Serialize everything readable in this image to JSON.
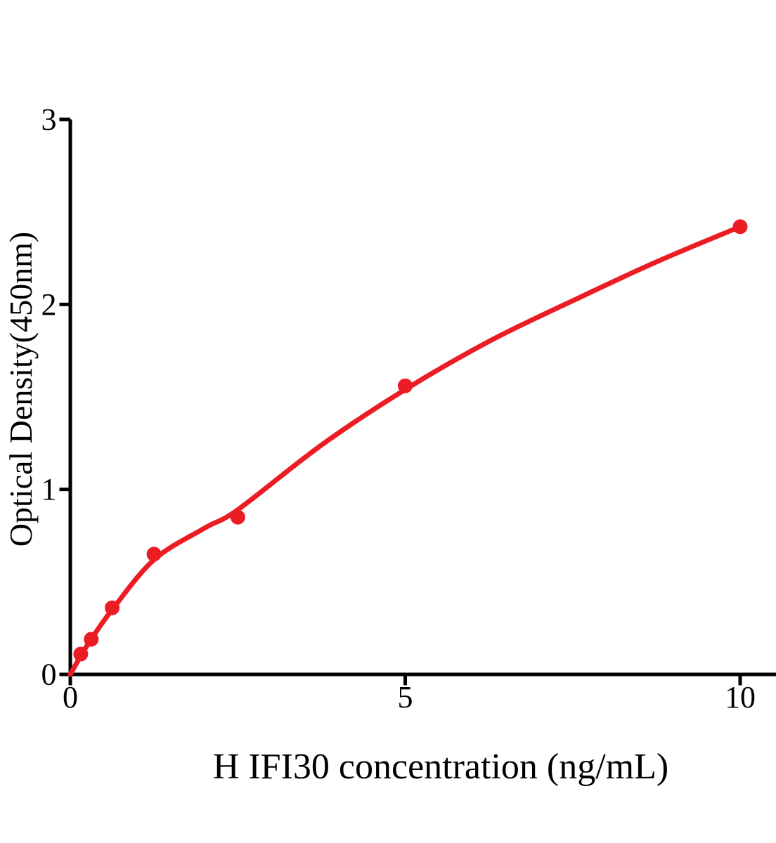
{
  "figure": {
    "background": "#ffffff",
    "axis_color": "#000000",
    "accent_red": "#ec1c24"
  },
  "chart_data": {
    "type": "scatter",
    "title": "",
    "xlabel": "H IFI30 concentration (ng/mL)",
    "ylabel": "Optical Density(450nm)",
    "xlim": [
      0,
      10.55
    ],
    "ylim": [
      0,
      3
    ],
    "grid": false,
    "legend": null,
    "x_ticks": [
      {
        "value": 0,
        "label": "0"
      },
      {
        "value": 5,
        "label": "5"
      },
      {
        "value": 10,
        "label": "10"
      }
    ],
    "y_ticks": [
      {
        "value": 0,
        "label": "0"
      },
      {
        "value": 1,
        "label": "1"
      },
      {
        "value": 2,
        "label": "2"
      },
      {
        "value": 3,
        "label": "3"
      }
    ],
    "series": [
      {
        "name": "standard-points",
        "type": "scatter",
        "color": "#ec1c24",
        "marker": "circle",
        "points": [
          {
            "x": 0.156,
            "y": 0.11
          },
          {
            "x": 0.3125,
            "y": 0.19
          },
          {
            "x": 0.625,
            "y": 0.36
          },
          {
            "x": 1.25,
            "y": 0.65
          },
          {
            "x": 2.5,
            "y": 0.85
          },
          {
            "x": 5,
            "y": 1.56
          },
          {
            "x": 10,
            "y": 2.42
          }
        ]
      },
      {
        "name": "fitted-curve",
        "type": "line",
        "color": "#ec1c24",
        "points": [
          {
            "x": 0,
            "y": 0
          },
          {
            "x": 0.156,
            "y": 0.1
          },
          {
            "x": 0.3125,
            "y": 0.19
          },
          {
            "x": 0.625,
            "y": 0.35
          },
          {
            "x": 1.25,
            "y": 0.62
          },
          {
            "x": 2.0,
            "y": 0.79
          },
          {
            "x": 2.5,
            "y": 0.89
          },
          {
            "x": 3.75,
            "y": 1.24
          },
          {
            "x": 5,
            "y": 1.54
          },
          {
            "x": 6.25,
            "y": 1.8
          },
          {
            "x": 7.5,
            "y": 2.02
          },
          {
            "x": 8.75,
            "y": 2.23
          },
          {
            "x": 10,
            "y": 2.42
          }
        ]
      }
    ]
  }
}
